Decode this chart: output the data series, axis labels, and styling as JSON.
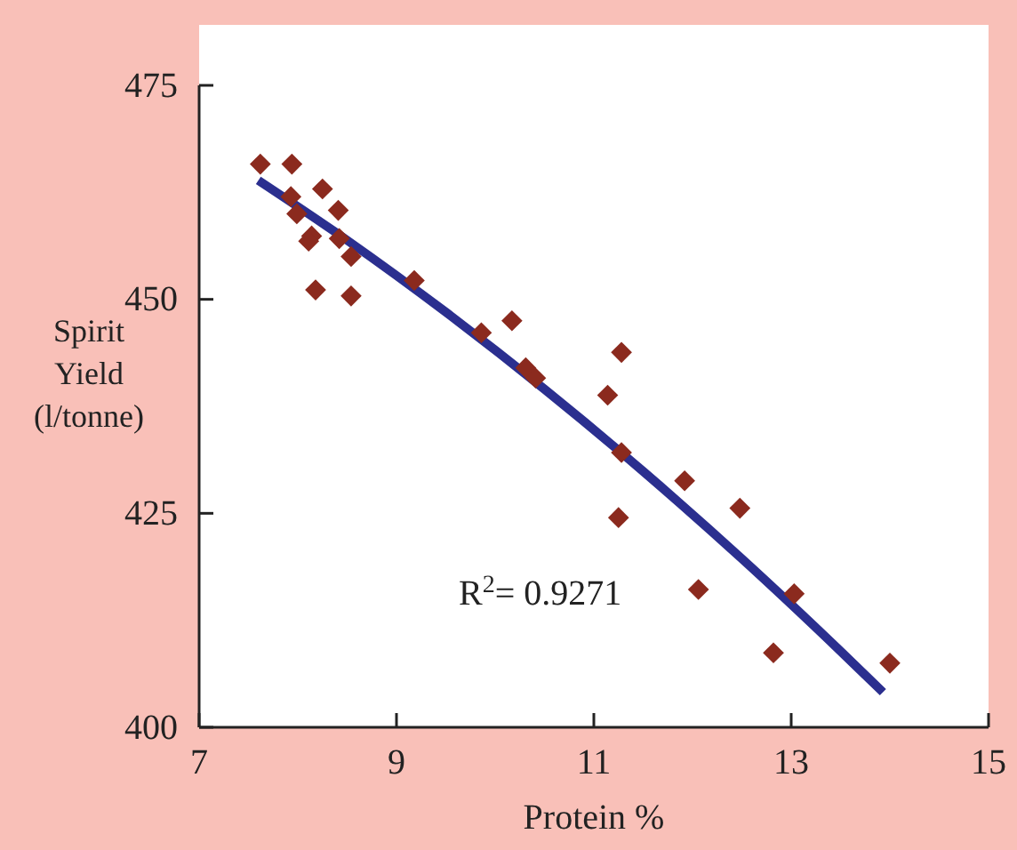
{
  "chart_data": {
    "type": "scatter",
    "xlabel": "Protein %",
    "ylabel": "Spirit Yield (l/tonne)",
    "annotations": [
      "R$^{2}$= 0.9271"
    ],
    "xlim": [
      7,
      15
    ],
    "ylim": [
      400,
      475
    ],
    "xticks": [
      7,
      9,
      11,
      13,
      15
    ],
    "yticks": [
      400,
      425,
      450,
      475
    ],
    "grid": false,
    "marker": "diamond",
    "series": [
      {
        "color": "#8b2a1e",
        "x": [
          7.62,
          7.94,
          7.93,
          8.25,
          7.99,
          8.41,
          8.14,
          8.11,
          8.42,
          8.54,
          9.18,
          8.18,
          8.54,
          10.17,
          9.86,
          10.31,
          10.41,
          11.28,
          11.14,
          11.28,
          11.92,
          12.48,
          11.25,
          12.06,
          13.03,
          12.82,
          14.0
        ],
        "values": [
          465.8,
          465.8,
          462.0,
          462.9,
          460.0,
          460.4,
          457.4,
          456.8,
          457.1,
          455.0,
          452.2,
          451.1,
          450.4,
          447.5,
          446.1,
          442.0,
          440.8,
          443.8,
          438.8,
          432.1,
          428.8,
          425.6,
          424.5,
          416.1,
          415.6,
          408.7,
          407.5
        ]
      },
      {
        "type": "line",
        "color": "#2b2f8f",
        "line_style": "solid",
        "marker": "none",
        "x": [
          7.6,
          8.5,
          9.5,
          10.5,
          11.5,
          12.5,
          13.5,
          13.93
        ],
        "values": [
          463.9,
          456.9,
          448.5,
          439.5,
          429.9,
          419.7,
          408.9,
          404.1
        ]
      }
    ]
  }
}
